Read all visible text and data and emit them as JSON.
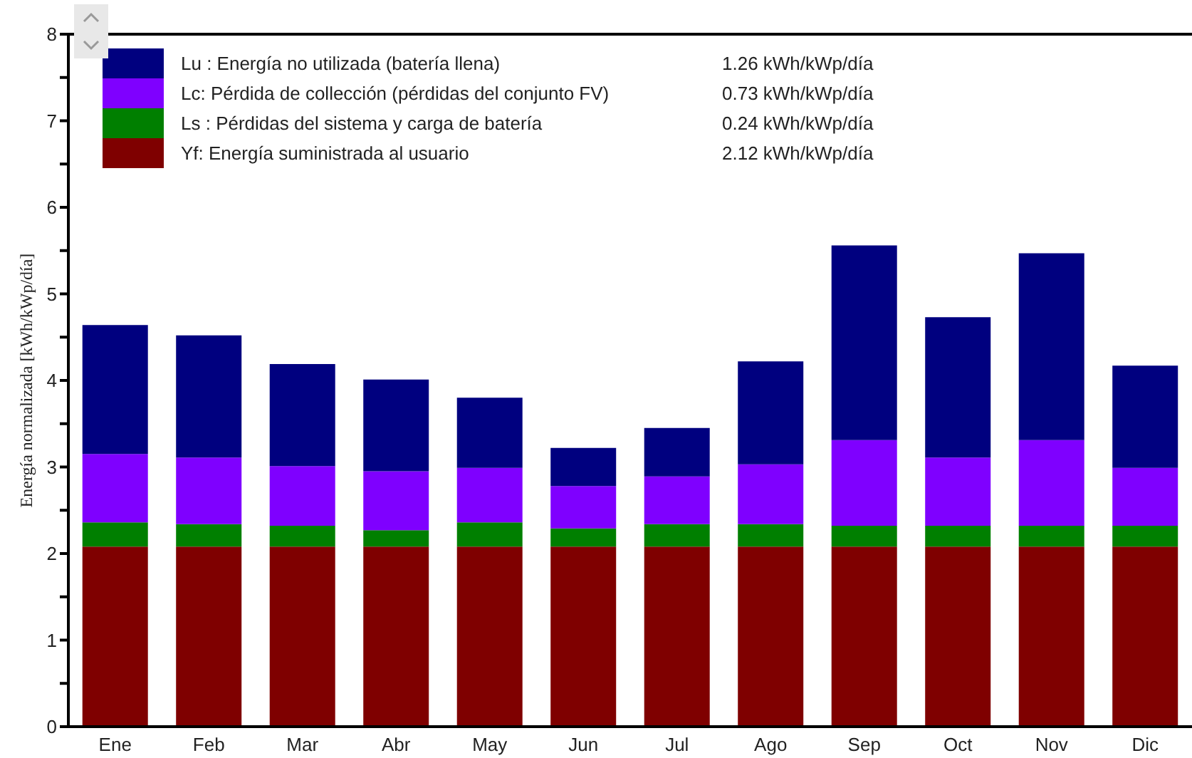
{
  "chart_data": {
    "type": "bar",
    "stacked": true,
    "ylabel": "Energía normalizada [kWh/kWp/día]",
    "categories": [
      "Ene",
      "Feb",
      "Mar",
      "Abr",
      "May",
      "Jun",
      "Jul",
      "Ago",
      "Sep",
      "Oct",
      "Nov",
      "Dic"
    ],
    "series": [
      {
        "name": "Yf: Energía suministrada al usuario",
        "color": "#7f0000",
        "values": [
          2.08,
          2.08,
          2.08,
          2.08,
          2.08,
          2.08,
          2.08,
          2.08,
          2.08,
          2.08,
          2.08,
          2.08
        ]
      },
      {
        "name": "Ls : Pérdidas del sistema y carga de batería",
        "color": "#007f00",
        "values": [
          0.28,
          0.26,
          0.24,
          0.19,
          0.28,
          0.21,
          0.26,
          0.26,
          0.24,
          0.24,
          0.24,
          0.24
        ]
      },
      {
        "name": "Lc: Pérdida de collección (pérdidas del conjunto FV)",
        "color": "#7f00ff",
        "values": [
          0.79,
          0.77,
          0.69,
          0.68,
          0.63,
          0.49,
          0.55,
          0.69,
          0.99,
          0.79,
          0.99,
          0.67
        ]
      },
      {
        "name": "Lu : Energía no utilizada (batería llena)",
        "color": "#00007f",
        "values": [
          1.49,
          1.41,
          1.18,
          1.06,
          0.81,
          0.44,
          0.56,
          1.19,
          2.25,
          1.62,
          2.16,
          1.18
        ]
      }
    ],
    "annotations": [
      "2.12 kWh/kWp/día",
      "0.24 kWh/kWp/día",
      "0.73 kWh/kWp/día",
      "1.26 kWh/kWp/día"
    ],
    "ylim": [
      0,
      8
    ],
    "yticks": [
      0,
      {
        "value": 0.5,
        "label": null
      },
      1,
      {
        "value": 1.5,
        "label": null
      },
      2,
      {
        "value": 2.5,
        "label": null
      },
      3,
      {
        "value": 3.5,
        "label": null
      },
      4,
      {
        "value": 4.5,
        "label": null
      },
      5,
      {
        "value": 5.5,
        "label": null
      },
      6,
      {
        "value": 6.5,
        "label": null
      },
      7,
      {
        "value": 7.5,
        "label": null
      },
      8
    ],
    "grid": false,
    "legend": "top left"
  }
}
